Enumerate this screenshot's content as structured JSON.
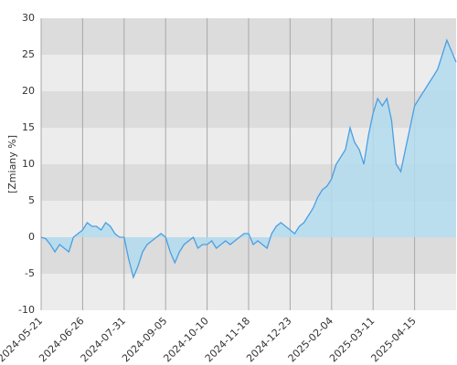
{
  "chart_data": {
    "type": "area",
    "y_label": "[Zmiany %]",
    "categories": [
      "2024-05-21",
      null,
      null,
      null,
      null,
      null,
      null,
      null,
      null,
      "2024-06-26",
      null,
      null,
      null,
      null,
      null,
      null,
      null,
      null,
      "2024-07-31",
      null,
      null,
      null,
      null,
      null,
      null,
      null,
      null,
      "2024-09-05",
      null,
      null,
      null,
      null,
      null,
      null,
      null,
      null,
      "2024-10-10",
      null,
      null,
      null,
      null,
      null,
      null,
      null,
      null,
      "2024-11-18",
      null,
      null,
      null,
      null,
      null,
      null,
      null,
      null,
      "2024-12-23",
      null,
      null,
      null,
      null,
      null,
      null,
      null,
      null,
      "2025-02-04",
      null,
      null,
      null,
      null,
      null,
      null,
      null,
      null,
      "2025-03-11",
      null,
      null,
      null,
      null,
      null,
      null,
      null,
      null,
      "2025-04-15",
      null,
      null,
      null,
      null,
      null,
      null,
      null,
      null,
      null
    ],
    "series": [
      {
        "color": "#4a9fe3",
        "fill": "#b3dcee",
        "values": [
          0,
          -0.2,
          -1,
          -2,
          -1,
          -1.5,
          -2,
          0,
          0.5,
          1,
          2,
          1.5,
          1.5,
          1,
          2,
          1.5,
          0.5,
          0,
          0,
          -3,
          -5.5,
          -4,
          -2,
          -1,
          -0.5,
          0,
          0.5,
          0,
          -2,
          -3.5,
          -2,
          -1,
          -0.5,
          0,
          -1.5,
          -1,
          -1,
          -0.5,
          -1.5,
          -1,
          -0.5,
          -1,
          -0.5,
          0,
          0.5,
          0.5,
          -1,
          -0.5,
          -1,
          -1.5,
          0.5,
          1.5,
          2,
          1.5,
          1,
          0.5,
          1.5,
          2,
          3,
          4,
          5.5,
          6.5,
          7,
          8,
          10,
          11,
          12,
          15,
          13,
          12,
          10,
          14,
          17,
          19,
          18,
          19,
          16,
          10,
          9,
          12,
          15,
          18,
          19,
          20,
          21,
          22,
          23,
          25,
          27,
          25.5,
          24
        ]
      }
    ],
    "ylim": [
      -10,
      30
    ],
    "yticks": [
      -10,
      -5,
      0,
      5,
      10,
      15,
      20,
      25,
      30
    ],
    "band_colors": [
      "#dcdcdc",
      "#ececec"
    ],
    "grid": true
  }
}
